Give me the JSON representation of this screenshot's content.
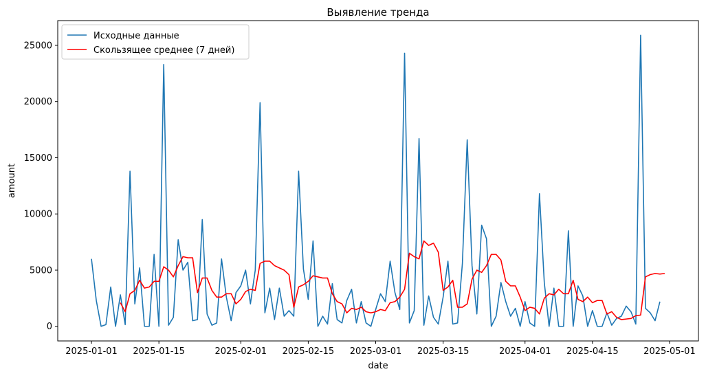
{
  "chart_data": {
    "type": "line",
    "title": "Выявление тренда",
    "xlabel": "date",
    "ylabel": "amount",
    "x_start": "2025-01-01",
    "x_end": "2025-04-30",
    "xlim": [
      "2024-12-25",
      "2025-05-07"
    ],
    "ylim": [
      -1300,
      27200
    ],
    "xticks": [
      "2025-01-01",
      "2025-01-15",
      "2025-02-01",
      "2025-02-15",
      "2025-03-01",
      "2025-03-15",
      "2025-04-01",
      "2025-04-15",
      "2025-05-01"
    ],
    "yticks": [
      0,
      5000,
      10000,
      15000,
      20000,
      25000
    ],
    "grid": false,
    "legend_position": "top-left",
    "series": [
      {
        "name": "Исходные данные",
        "color": "#1f77b4",
        "values": [
          6000,
          2300,
          0,
          150,
          3500,
          0,
          2800,
          150,
          13800,
          2000,
          5200,
          0,
          0,
          6400,
          0,
          23300,
          100,
          800,
          7700,
          5000,
          5700,
          500,
          600,
          9500,
          1100,
          100,
          300,
          6000,
          2600,
          500,
          3000,
          3600,
          5000,
          2000,
          5000,
          19900,
          1200,
          3400,
          600,
          3400,
          900,
          1400,
          900,
          13800,
          5100,
          2400,
          7600,
          0,
          900,
          200,
          3800,
          600,
          300,
          2300,
          3300,
          300,
          2200,
          300,
          0,
          1500,
          2900,
          2200,
          5800,
          3000,
          1500,
          24300,
          300,
          1400,
          16700,
          100,
          2700,
          800,
          200,
          2600,
          5800,
          200,
          300,
          5600,
          16600,
          5400,
          1100,
          9000,
          7800,
          0,
          900,
          3900,
          2200,
          900,
          1600,
          0,
          2200,
          300,
          0,
          11800,
          3900,
          0,
          3400,
          0,
          0,
          8500,
          0,
          3600,
          2700,
          0,
          1400,
          0,
          0,
          1200,
          100,
          700,
          900,
          1800,
          1300,
          200,
          25900,
          1600,
          1200,
          500,
          2200
        ]
      },
      {
        "name": "Скользящее среднее (7 дней)",
        "color": "#ff0000",
        "start_index": 6,
        "values": [
          2100,
          1300,
          2900,
          3200,
          4100,
          3400,
          3500,
          4000,
          4000,
          5300,
          5000,
          4400,
          5400,
          6200,
          6100,
          6100,
          3000,
          4300,
          4300,
          3200,
          2600,
          2600,
          2900,
          2900,
          2000,
          2400,
          3100,
          3300,
          3200,
          5600,
          5800,
          5800,
          5400,
          5200,
          5000,
          4600,
          1700,
          3500,
          3700,
          4000,
          4500,
          4400,
          4300,
          4300,
          2900,
          2200,
          2000,
          1200,
          1600,
          1500,
          1700,
          1300,
          1200,
          1300,
          1500,
          1400,
          2100,
          2200,
          2600,
          3300,
          6500,
          6200,
          6000,
          7600,
          7200,
          7400,
          6600,
          3200,
          3500,
          4100,
          1700,
          1700,
          2000,
          4200,
          5000,
          4800,
          5400,
          6400,
          6400,
          5900,
          4000,
          3600,
          3600,
          2600,
          1400,
          1700,
          1600,
          1100,
          2500,
          2900,
          2800,
          3300,
          2900,
          2900,
          4100,
          2400,
          2200,
          2600,
          2100,
          2300,
          2300,
          1100,
          1300,
          800,
          600,
          650,
          700,
          950,
          1000,
          4400,
          4600,
          4700,
          4650,
          4700
        ]
      }
    ]
  }
}
